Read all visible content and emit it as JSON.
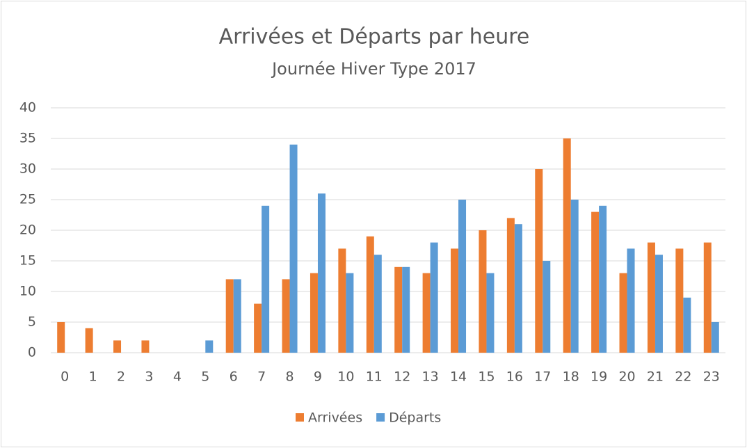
{
  "chart_data": {
    "type": "bar",
    "title": "Arrivées et Départs par heure",
    "subtitle": "Journée Hiver Type 2017",
    "categories": [
      "0",
      "1",
      "2",
      "3",
      "4",
      "5",
      "6",
      "7",
      "8",
      "9",
      "10",
      "11",
      "12",
      "13",
      "14",
      "15",
      "16",
      "17",
      "18",
      "19",
      "20",
      "21",
      "22",
      "23"
    ],
    "series": [
      {
        "name": "Arrivées",
        "color": "#ed7d31",
        "values": [
          5,
          4,
          2,
          2,
          0,
          0,
          12,
          8,
          12,
          13,
          17,
          19,
          14,
          13,
          17,
          20,
          22,
          30,
          35,
          23,
          13,
          18,
          17,
          18
        ]
      },
      {
        "name": "Départs",
        "color": "#5b9bd5",
        "values": [
          0,
          0,
          0,
          0,
          0,
          2,
          12,
          24,
          34,
          26,
          13,
          16,
          14,
          18,
          25,
          13,
          21,
          15,
          25,
          24,
          17,
          16,
          9,
          5
        ]
      }
    ],
    "ylim": [
      0,
      40
    ],
    "yticks": [
      0,
      5,
      10,
      15,
      20,
      25,
      30,
      35,
      40
    ],
    "grid": true,
    "legend": "bottom"
  }
}
